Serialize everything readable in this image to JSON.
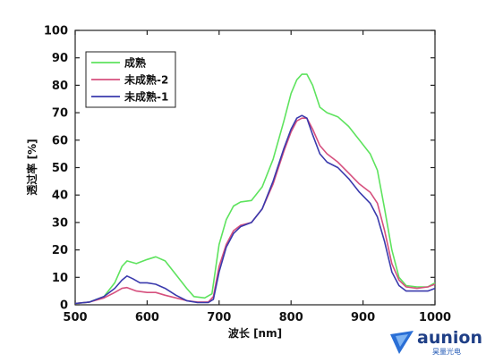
{
  "chart_data": {
    "type": "line",
    "xlabel": "波长 [nm]",
    "ylabel": "透过率 [%]",
    "xlim": [
      500,
      1000
    ],
    "ylim": [
      0,
      100
    ],
    "xticks": [
      500,
      600,
      700,
      800,
      900,
      1000
    ],
    "yticks": [
      0,
      10,
      20,
      30,
      40,
      50,
      60,
      70,
      80,
      90,
      100
    ],
    "grid": false,
    "legend_position": "top-left",
    "series": [
      {
        "name": "成熟",
        "color": "#5ee35e",
        "points": [
          [
            500,
            0.5
          ],
          [
            520,
            1
          ],
          [
            540,
            3
          ],
          [
            555,
            8
          ],
          [
            565,
            14
          ],
          [
            572,
            16
          ],
          [
            585,
            15
          ],
          [
            600,
            16.5
          ],
          [
            612,
            17.5
          ],
          [
            625,
            16
          ],
          [
            640,
            11
          ],
          [
            655,
            6
          ],
          [
            665,
            3
          ],
          [
            680,
            2.5
          ],
          [
            690,
            4
          ],
          [
            700,
            22
          ],
          [
            710,
            31
          ],
          [
            720,
            36
          ],
          [
            730,
            37.5
          ],
          [
            745,
            38
          ],
          [
            760,
            43
          ],
          [
            775,
            53
          ],
          [
            790,
            67
          ],
          [
            800,
            77
          ],
          [
            808,
            82
          ],
          [
            815,
            84
          ],
          [
            822,
            84
          ],
          [
            830,
            80
          ],
          [
            840,
            72
          ],
          [
            850,
            70
          ],
          [
            865,
            68.5
          ],
          [
            880,
            65
          ],
          [
            895,
            60
          ],
          [
            910,
            55
          ],
          [
            920,
            49
          ],
          [
            930,
            35
          ],
          [
            940,
            20
          ],
          [
            950,
            10
          ],
          [
            960,
            7
          ],
          [
            975,
            6.5
          ],
          [
            990,
            6.5
          ],
          [
            1000,
            8
          ]
        ]
      },
      {
        "name": "未成熟-2",
        "color": "#d6507e",
        "points": [
          [
            500,
            0.5
          ],
          [
            520,
            1
          ],
          [
            540,
            2.5
          ],
          [
            555,
            4.5
          ],
          [
            565,
            6
          ],
          [
            572,
            6.3
          ],
          [
            585,
            5
          ],
          [
            600,
            4.5
          ],
          [
            612,
            4.5
          ],
          [
            625,
            3.5
          ],
          [
            640,
            2.5
          ],
          [
            655,
            1.5
          ],
          [
            670,
            1
          ],
          [
            685,
            1
          ],
          [
            692,
            3
          ],
          [
            700,
            14
          ],
          [
            710,
            22
          ],
          [
            720,
            27
          ],
          [
            730,
            29
          ],
          [
            745,
            30
          ],
          [
            760,
            35
          ],
          [
            775,
            44
          ],
          [
            790,
            56
          ],
          [
            800,
            63
          ],
          [
            808,
            67
          ],
          [
            815,
            68
          ],
          [
            822,
            68
          ],
          [
            830,
            64
          ],
          [
            840,
            58
          ],
          [
            850,
            55
          ],
          [
            865,
            52
          ],
          [
            880,
            48
          ],
          [
            895,
            44
          ],
          [
            910,
            41
          ],
          [
            920,
            37
          ],
          [
            930,
            27
          ],
          [
            940,
            15
          ],
          [
            950,
            9
          ],
          [
            960,
            6.5
          ],
          [
            975,
            6
          ],
          [
            990,
            6.5
          ],
          [
            1000,
            7.5
          ]
        ]
      },
      {
        "name": "未成熟-1",
        "color": "#3a3aad",
        "points": [
          [
            500,
            0.5
          ],
          [
            520,
            1
          ],
          [
            540,
            3
          ],
          [
            555,
            6
          ],
          [
            565,
            9
          ],
          [
            572,
            10.5
          ],
          [
            580,
            9.5
          ],
          [
            590,
            8
          ],
          [
            600,
            8
          ],
          [
            612,
            7.5
          ],
          [
            625,
            6
          ],
          [
            640,
            3.5
          ],
          [
            655,
            1.5
          ],
          [
            670,
            0.8
          ],
          [
            685,
            0.8
          ],
          [
            692,
            2
          ],
          [
            700,
            12
          ],
          [
            710,
            21
          ],
          [
            720,
            26
          ],
          [
            730,
            28.5
          ],
          [
            745,
            30
          ],
          [
            760,
            35
          ],
          [
            775,
            45
          ],
          [
            790,
            57
          ],
          [
            800,
            64
          ],
          [
            808,
            68
          ],
          [
            815,
            69
          ],
          [
            822,
            68
          ],
          [
            830,
            62
          ],
          [
            840,
            55
          ],
          [
            850,
            52
          ],
          [
            865,
            50
          ],
          [
            880,
            46
          ],
          [
            895,
            41
          ],
          [
            910,
            37
          ],
          [
            920,
            32
          ],
          [
            930,
            23
          ],
          [
            940,
            12
          ],
          [
            950,
            7
          ],
          [
            960,
            5
          ],
          [
            975,
            5
          ],
          [
            990,
            5
          ],
          [
            1000,
            6
          ]
        ]
      }
    ]
  },
  "logo": {
    "name": "aunion",
    "sub": "昊量光电"
  }
}
